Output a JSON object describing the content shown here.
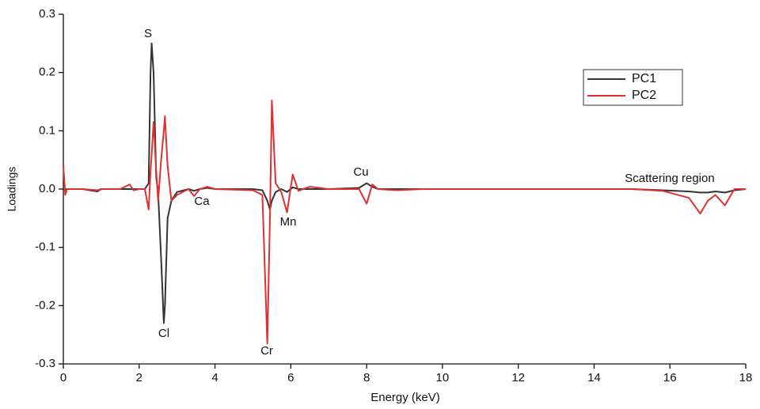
{
  "chart_data": {
    "type": "line",
    "x_label": "Energy (keV)",
    "y_label": "Loadings",
    "x": [
      0,
      0.05,
      0.1,
      0.5,
      0.9,
      1.0,
      1.5,
      1.75,
      1.85,
      2.0,
      2.15,
      2.25,
      2.3,
      2.33,
      2.38,
      2.45,
      2.5,
      2.58,
      2.65,
      2.68,
      2.75,
      2.85,
      3.0,
      3.3,
      3.45,
      3.6,
      3.8,
      4.0,
      5.0,
      5.25,
      5.38,
      5.45,
      5.5,
      5.6,
      5.75,
      5.9,
      6.05,
      6.2,
      6.5,
      7.0,
      7.8,
      8.0,
      8.15,
      8.3,
      8.8,
      9.5,
      12,
      15,
      15.8,
      16.5,
      16.8,
      17.0,
      17.2,
      17.45,
      17.7,
      18
    ],
    "series": [
      {
        "name": "PC1",
        "color": "#333333",
        "values": [
          0,
          0,
          0,
          0,
          -0.004,
          0,
          0,
          0,
          0,
          0,
          0,
          0.01,
          0.2,
          0.25,
          0.2,
          0.02,
          -0.005,
          -0.12,
          -0.23,
          -0.2,
          -0.05,
          -0.02,
          -0.005,
          0,
          -0.003,
          0,
          0.002,
          0,
          0,
          -0.002,
          -0.02,
          -0.035,
          -0.02,
          -0.005,
          0,
          -0.005,
          0.003,
          0,
          0,
          0,
          0.002,
          0.01,
          0.004,
          0,
          0,
          0,
          0,
          0,
          -0.002,
          -0.004,
          -0.006,
          -0.006,
          -0.004,
          -0.006,
          -0.002,
          0
        ]
      },
      {
        "name": "PC2",
        "color": "#e03030",
        "values": [
          0.04,
          -0.01,
          0,
          0,
          -0.002,
          0,
          0,
          0.008,
          -0.002,
          0,
          0,
          -0.035,
          0.03,
          0.06,
          0.115,
          0.03,
          -0.02,
          0.05,
          0.1,
          0.125,
          0.04,
          -0.02,
          -0.01,
          0,
          -0.012,
          0,
          0.004,
          0,
          -0.002,
          -0.01,
          -0.265,
          -0.05,
          0.152,
          0.01,
          -0.005,
          -0.04,
          0.025,
          -0.003,
          0.004,
          0,
          0,
          -0.025,
          0.008,
          0,
          -0.002,
          0,
          0,
          0,
          -0.003,
          -0.015,
          -0.042,
          -0.02,
          -0.01,
          -0.028,
          0,
          0
        ]
      }
    ],
    "annotations": [
      "S",
      "Cl",
      "Ca",
      "Cr",
      "Mn",
      "Cu",
      "Scattering region"
    ],
    "xlim": [
      0,
      18
    ],
    "xticks": [
      0,
      2,
      4,
      6,
      8,
      10,
      12,
      14,
      16,
      18
    ],
    "ylim": [
      -0.3,
      0.3
    ],
    "yticks": [
      -0.3,
      -0.2,
      -0.1,
      {
        "value": 0,
        "label": "0.0"
      },
      0.1,
      0.2,
      0.3
    ]
  }
}
